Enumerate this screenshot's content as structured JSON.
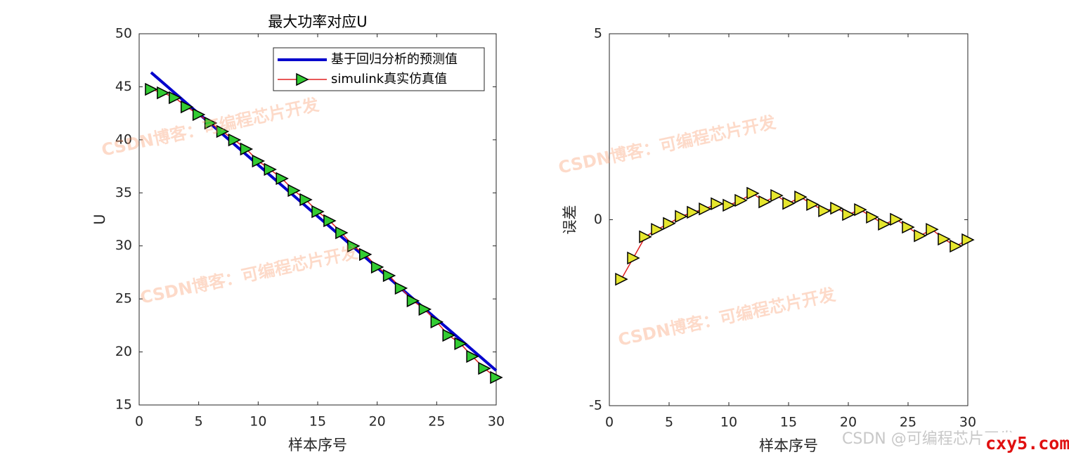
{
  "chart_data": [
    {
      "type": "line",
      "title": "最大功率对应U",
      "xlabel": "样本序号",
      "ylabel": "U",
      "x": [
        1,
        2,
        3,
        4,
        5,
        6,
        7,
        8,
        9,
        10,
        11,
        12,
        13,
        14,
        15,
        16,
        17,
        18,
        19,
        20,
        21,
        22,
        23,
        24,
        25,
        26,
        27,
        28,
        29,
        30
      ],
      "xlim": [
        0,
        30
      ],
      "xticks": [
        0,
        5,
        10,
        15,
        20,
        25,
        30
      ],
      "ylim": [
        15,
        50
      ],
      "yticks": [
        15,
        20,
        25,
        30,
        35,
        40,
        45,
        50
      ],
      "legend": "northeast",
      "series": [
        {
          "name": "基于回归分析的预测值",
          "color": "#0000cc",
          "width": 4,
          "values": [
            46.35,
            45.38,
            44.41,
            43.44,
            42.47,
            41.51,
            40.54,
            39.57,
            38.6,
            37.63,
            36.66,
            35.69,
            34.72,
            33.75,
            32.78,
            31.82,
            30.85,
            29.88,
            28.91,
            27.94,
            26.97,
            26.0,
            25.03,
            24.06,
            23.09,
            22.13,
            21.16,
            20.19,
            19.22,
            18.25
          ]
        },
        {
          "name": "simulink真实仿真值",
          "color": "#e02020",
          "width": 1.5,
          "marker": "triangle-right",
          "marker_color": "#33cc33",
          "values": [
            44.76,
            44.43,
            43.97,
            43.1,
            42.38,
            41.58,
            40.79,
            39.99,
            39.13,
            38.0,
            37.21,
            36.35,
            35.22,
            34.36,
            33.23,
            32.37,
            31.24,
            29.99,
            29.19,
            28.0,
            27.2,
            26.01,
            24.82,
            24.02,
            22.83,
            21.57,
            20.78,
            19.58,
            18.45,
            17.59
          ]
        }
      ]
    },
    {
      "type": "line",
      "xlabel": "样本序号",
      "ylabel": "误差",
      "x": [
        1,
        2,
        3,
        4,
        5,
        6,
        7,
        8,
        9,
        10,
        11,
        12,
        13,
        14,
        15,
        16,
        17,
        18,
        19,
        20,
        21,
        22,
        23,
        24,
        25,
        26,
        27,
        28,
        29,
        30
      ],
      "xlim": [
        0,
        30
      ],
      "xticks": [
        0,
        5,
        10,
        15,
        20,
        25,
        30
      ],
      "ylim": [
        -5,
        5
      ],
      "yticks": [
        -5,
        0,
        5
      ],
      "series": [
        {
          "color": "#e02020",
          "width": 1.5,
          "marker": "triangle-right",
          "marker_color": "#e6e62e",
          "values": [
            -1.6,
            -1.03,
            -0.46,
            -0.26,
            -0.1,
            0.09,
            0.2,
            0.29,
            0.43,
            0.39,
            0.52,
            0.71,
            0.48,
            0.65,
            0.44,
            0.61,
            0.41,
            0.24,
            0.31,
            0.14,
            0.27,
            0.07,
            -0.12,
            0.01,
            -0.2,
            -0.43,
            -0.26,
            -0.52,
            -0.71,
            -0.54
          ]
        }
      ]
    }
  ],
  "watermark": "CSDN博客：可编程芯片开发",
  "footer": "CSDN @可编程芯片开发",
  "site": "cxy5.com"
}
